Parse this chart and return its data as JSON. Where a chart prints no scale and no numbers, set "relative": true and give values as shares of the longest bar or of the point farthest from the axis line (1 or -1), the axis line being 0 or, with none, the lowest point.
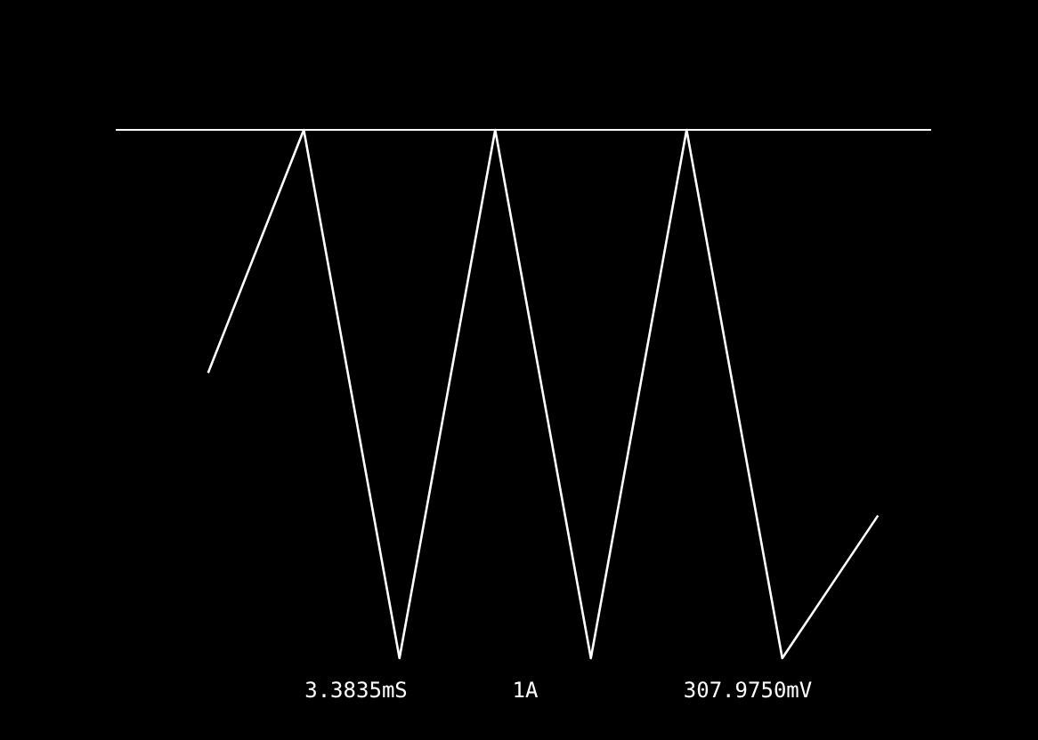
{
  "chart_data": {
    "type": "line",
    "relative": true,
    "line_style": "solid",
    "marker": "none",
    "categories": [
      null,
      null,
      null,
      null,
      null,
      null,
      null,
      null
    ],
    "series": [
      {
        "color": "#ffffff",
        "values": [
          -0.46,
          0,
          -1,
          0,
          -1,
          0,
          -1,
          -0.73
        ]
      }
    ],
    "annotations": [
      "3.3835mS",
      "1A",
      "307.9750mV"
    ]
  }
}
